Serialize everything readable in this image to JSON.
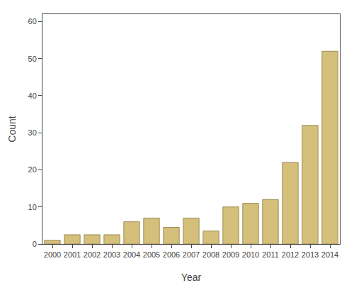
{
  "chart_data": {
    "type": "bar",
    "categories": [
      "2000",
      "2001",
      "2002",
      "2003",
      "2004",
      "2005",
      "2006",
      "2007",
      "2008",
      "2009",
      "2010",
      "2011",
      "2012",
      "2013",
      "2014"
    ],
    "values": [
      1,
      2.5,
      2.5,
      2.5,
      6,
      7,
      4.5,
      7,
      3.5,
      10,
      11,
      12,
      22,
      32,
      52
    ],
    "color": "#D4C07A",
    "xlabel": "Year",
    "ylabel": "Count",
    "ylim": [
      0,
      62
    ],
    "yticks": [
      0,
      10,
      20,
      30,
      40,
      50,
      60
    ],
    "grid": false
  }
}
